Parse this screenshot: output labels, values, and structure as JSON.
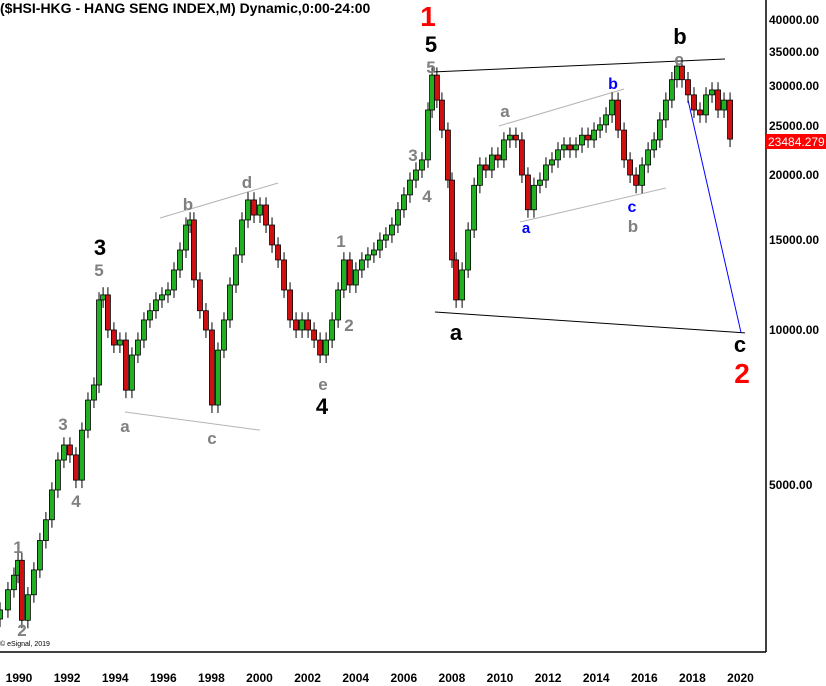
{
  "title": "($HSI-HKG - HANG SENG INDEX,M) Dynamic,0:00-24:00",
  "copyright": "© eSignal, 2019",
  "colors": {
    "up": "#22b022",
    "down": "#d01010",
    "outline": "#000000",
    "last_price_bg": "#ff0000",
    "wave_red": "#ff0000",
    "wave_black": "#000000",
    "wave_gray": "#808080",
    "wave_blue": "#0000ff",
    "trend_gray": "#b4b4b4"
  },
  "chart_data": {
    "type": "candlestick",
    "title": "($HSI-HKG - HANG SENG INDEX,M) Dynamic,0:00-24:00",
    "x_scale": "time (years)",
    "y_scale": "log",
    "xlim": [
      1989.2,
      2021
    ],
    "ylim": [
      2500,
      42000
    ],
    "grid": false,
    "x_ticks": [
      "1990",
      "1992",
      "1994",
      "1996",
      "1998",
      "2000",
      "2002",
      "2004",
      "2006",
      "2008",
      "2010",
      "2012",
      "2014",
      "2016",
      "2018",
      "2020"
    ],
    "y_ticks": [
      "40000.00",
      "35000.00",
      "30000.00",
      "25000.00",
      "20000.00",
      "15000.00",
      "10000.00",
      "5000.00"
    ],
    "last_price": "23484.279",
    "closes": [
      [
        1989.21,
        2860
      ],
      [
        1989.54,
        3130
      ],
      [
        1989.79,
        3340
      ],
      [
        1989.96,
        3570
      ],
      [
        1990.12,
        2730
      ],
      [
        1990.37,
        3060
      ],
      [
        1990.62,
        3420
      ],
      [
        1990.87,
        3900
      ],
      [
        1991.12,
        4280
      ],
      [
        1991.37,
        4890
      ],
      [
        1991.62,
        5590
      ],
      [
        1991.87,
        5980
      ],
      [
        1992.12,
        5720
      ],
      [
        1992.37,
        5110
      ],
      [
        1992.62,
        6390
      ],
      [
        1992.87,
        7310
      ],
      [
        1993.12,
        7820
      ],
      [
        1993.33,
        11440
      ],
      [
        1993.5,
        11700
      ],
      [
        1993.7,
        10000
      ],
      [
        1993.95,
        9350
      ],
      [
        1994.2,
        9560
      ],
      [
        1994.45,
        7640
      ],
      [
        1994.7,
        8940
      ],
      [
        1994.95,
        9560
      ],
      [
        1995.2,
        10460
      ],
      [
        1995.45,
        10900
      ],
      [
        1995.7,
        11440
      ],
      [
        1995.95,
        11700
      ],
      [
        1996.2,
        11960
      ],
      [
        1996.45,
        13080
      ],
      [
        1996.7,
        14300
      ],
      [
        1996.95,
        15990
      ],
      [
        1997.12,
        16360
      ],
      [
        1997.28,
        12510
      ],
      [
        1997.53,
        10900
      ],
      [
        1997.78,
        10000
      ],
      [
        1998.03,
        7150
      ],
      [
        1998.28,
        9140
      ],
      [
        1998.53,
        10460
      ],
      [
        1998.78,
        12230
      ],
      [
        1999.03,
        13990
      ],
      [
        1999.28,
        16360
      ],
      [
        1999.53,
        17890
      ],
      [
        1999.78,
        16720
      ],
      [
        2000.03,
        17490
      ],
      [
        2000.28,
        15990
      ],
      [
        2000.53,
        14630
      ],
      [
        2000.78,
        13680
      ],
      [
        2001.03,
        11960
      ],
      [
        2001.28,
        10460
      ],
      [
        2001.53,
        10000
      ],
      [
        2001.78,
        10460
      ],
      [
        2002.03,
        10000
      ],
      [
        2002.28,
        9560
      ],
      [
        2002.53,
        8940
      ],
      [
        2002.78,
        9560
      ],
      [
        2003.03,
        10460
      ],
      [
        2003.28,
        11960
      ],
      [
        2003.52,
        13680
      ],
      [
        2003.77,
        12230
      ],
      [
        2004.02,
        13080
      ],
      [
        2004.27,
        13680
      ],
      [
        2004.52,
        13990
      ],
      [
        2004.77,
        14300
      ],
      [
        2005.02,
        14950
      ],
      [
        2005.27,
        15300
      ],
      [
        2005.52,
        15990
      ],
      [
        2005.77,
        17120
      ],
      [
        2006.02,
        18300
      ],
      [
        2006.27,
        19550
      ],
      [
        2006.52,
        20450
      ],
      [
        2006.77,
        21400
      ],
      [
        2007.02,
        26750
      ],
      [
        2007.19,
        31270
      ],
      [
        2007.39,
        27960
      ],
      [
        2007.6,
        24450
      ],
      [
        2007.85,
        19550
      ],
      [
        2008.02,
        13680
      ],
      [
        2008.19,
        11440
      ],
      [
        2008.44,
        13080
      ],
      [
        2008.69,
        15640
      ],
      [
        2008.94,
        19100
      ],
      [
        2009.18,
        20920
      ],
      [
        2009.43,
        20450
      ],
      [
        2009.68,
        21870
      ],
      [
        2009.93,
        21400
      ],
      [
        2010.18,
        23400
      ],
      [
        2010.43,
        23900
      ],
      [
        2010.68,
        23400
      ],
      [
        2010.93,
        20000
      ],
      [
        2011.18,
        17120
      ],
      [
        2011.43,
        19100
      ],
      [
        2011.68,
        19550
      ],
      [
        2011.93,
        20920
      ],
      [
        2012.18,
        21400
      ],
      [
        2012.43,
        22380
      ],
      [
        2012.68,
        22880
      ],
      [
        2012.93,
        22380
      ],
      [
        2013.18,
        22880
      ],
      [
        2013.43,
        23900
      ],
      [
        2013.68,
        23400
      ],
      [
        2013.93,
        24450
      ],
      [
        2014.18,
        25030
      ],
      [
        2014.43,
        26170
      ],
      [
        2014.68,
        27960
      ],
      [
        2014.93,
        24450
      ],
      [
        2015.18,
        21400
      ],
      [
        2015.43,
        20000
      ],
      [
        2015.68,
        19100
      ],
      [
        2015.93,
        20920
      ],
      [
        2016.18,
        22380
      ],
      [
        2016.43,
        23400
      ],
      [
        2016.67,
        25590
      ],
      [
        2016.92,
        27960
      ],
      [
        2017.17,
        30630
      ],
      [
        2017.38,
        32560
      ],
      [
        2017.59,
        30630
      ],
      [
        2017.84,
        28620
      ],
      [
        2018.09,
        26750
      ],
      [
        2018.34,
        26170
      ],
      [
        2018.59,
        28620
      ],
      [
        2018.84,
        29260
      ],
      [
        2019.09,
        26750
      ],
      [
        2019.34,
        27960
      ],
      [
        2019.59,
        23484
      ]
    ],
    "trendlines": [
      {
        "color": "#000000",
        "points": [
          [
            2007.19,
            31700
          ],
          [
            2019.38,
            33600
          ]
        ]
      },
      {
        "color": "#000000",
        "points": [
          [
            2007.31,
            10840
          ],
          [
            2020.21,
            9870
          ]
        ]
      },
      {
        "color": "#0000ff",
        "points": [
          [
            2017.84,
            27970
          ],
          [
            2020.05,
            9870
          ]
        ]
      },
      {
        "color": "#b4b4b4",
        "points": [
          [
            1994.41,
            6930
          ],
          [
            2000.03,
            6390
          ]
        ]
      },
      {
        "color": "#b4b4b4",
        "points": [
          [
            1995.87,
            16500
          ],
          [
            2000.78,
            19300
          ]
        ]
      },
      {
        "color": "#b4b4b4",
        "points": [
          [
            2009.97,
            24900
          ],
          [
            2015.18,
            29380
          ]
        ]
      },
      {
        "color": "#b4b4b4",
        "points": [
          [
            2010.85,
            16210
          ],
          [
            2016.92,
            18870
          ]
        ]
      }
    ],
    "annotations": [
      {
        "text": "1",
        "color": "red"
      },
      {
        "text": "5",
        "color": "black"
      },
      {
        "text": "5",
        "color": "gray"
      },
      {
        "text": "3",
        "color": "gray"
      },
      {
        "text": "4",
        "color": "gray"
      },
      {
        "text": "a",
        "color": "gray"
      },
      {
        "text": "b",
        "color": "blue"
      },
      {
        "text": "a",
        "color": "blue"
      },
      {
        "text": "c",
        "color": "blue"
      },
      {
        "text": "b",
        "color": "gray"
      },
      {
        "text": "b",
        "color": "black"
      },
      {
        "text": "c",
        "color": "gray"
      },
      {
        "text": "a",
        "color": "black"
      },
      {
        "text": "c",
        "color": "black"
      },
      {
        "text": "2",
        "color": "red"
      },
      {
        "text": "3",
        "color": "black"
      },
      {
        "text": "5",
        "color": "gray"
      },
      {
        "text": "b",
        "color": "gray"
      },
      {
        "text": "d",
        "color": "gray"
      },
      {
        "text": "a",
        "color": "gray"
      },
      {
        "text": "c",
        "color": "gray"
      },
      {
        "text": "1",
        "color": "gray"
      },
      {
        "text": "2",
        "color": "gray"
      },
      {
        "text": "e",
        "color": "gray"
      },
      {
        "text": "4",
        "color": "black"
      },
      {
        "text": "3",
        "color": "gray"
      },
      {
        "text": "4",
        "color": "gray"
      },
      {
        "text": "1",
        "color": "gray"
      },
      {
        "text": "2",
        "color": "gray"
      }
    ]
  }
}
